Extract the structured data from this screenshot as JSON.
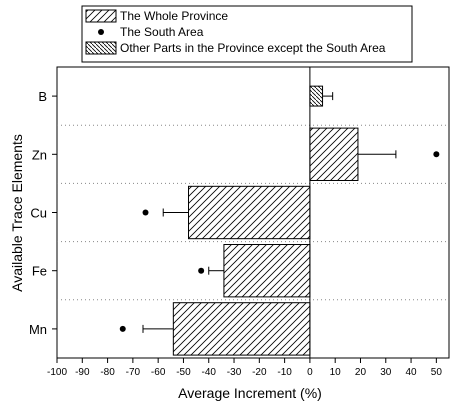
{
  "chart_data": {
    "type": "bar",
    "orientation": "horizontal",
    "categories": [
      "B",
      "Zn",
      "Cu",
      "Fe",
      "Mn"
    ],
    "series": [
      {
        "name": "The Whole Province",
        "pattern": "hatch-forward",
        "values": [
          null,
          19,
          -48,
          -34,
          -54
        ],
        "error_plus": [
          null,
          15,
          null,
          null,
          null
        ],
        "error_minus": [
          null,
          null,
          10,
          6,
          12
        ]
      },
      {
        "name": "The South Area",
        "marker": "dot",
        "values": [
          null,
          50,
          -65,
          -43,
          -74
        ]
      },
      {
        "name": "Other Parts in the Province except the South Area",
        "pattern": "hatch-backward",
        "values": [
          5,
          null,
          null,
          null,
          null
        ],
        "error_plus": [
          4,
          null,
          null,
          null,
          null
        ]
      }
    ],
    "xlabel": "Average Increment (%)",
    "ylabel": "Available Trace Elements",
    "xlim": [
      -100,
      55
    ],
    "xticks": [
      "-100",
      "-90",
      "-80",
      "-70",
      "-60",
      "-50",
      "-40",
      "-30",
      "-20",
      "-10",
      "0",
      "10",
      "20",
      "30",
      "40",
      "50"
    ],
    "legend_position": "top",
    "grid": "dotted horizontal separators between categories"
  }
}
